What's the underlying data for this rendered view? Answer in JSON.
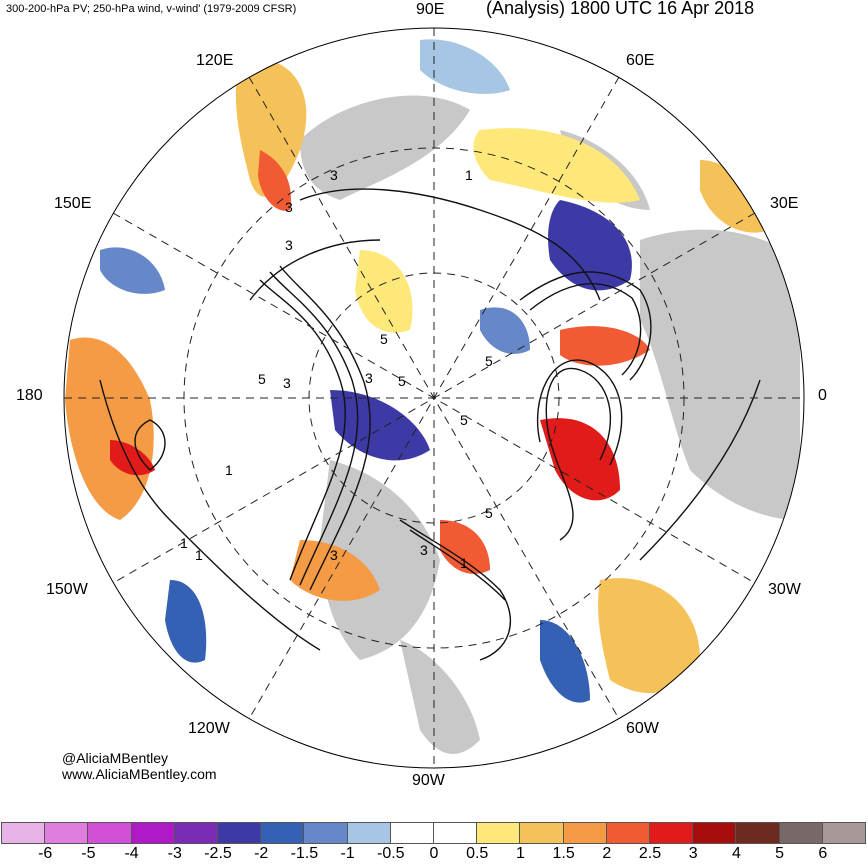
{
  "header": {
    "left": "300-200-hPa PV; 250-hPa wind, v-wind' (1979-2009 CFSR)",
    "right": "(Analysis) 1800 UTC 16 Apr 2018"
  },
  "longitude_labels": {
    "lon_90e": "90E",
    "lon_60e": "60E",
    "lon_120e": "120E",
    "lon_150e": "150E",
    "lon_30e": "30E",
    "lon_180": "180",
    "lon_0": "0",
    "lon_150w": "150W",
    "lon_30w": "30W",
    "lon_120w": "120W",
    "lon_60w": "60W",
    "lon_90w": "90W"
  },
  "credits": {
    "handle": "@AliciaMBentley",
    "site": "www.AliciaMBentley.com"
  },
  "contour_labels": [
    "3",
    "3",
    "3",
    "3",
    "1",
    "5",
    "5",
    "5",
    "3",
    "5",
    "5",
    "1",
    "3",
    "1",
    "5",
    "3",
    "1",
    "1"
  ],
  "colorbar": {
    "colors": [
      "#e8b4e8",
      "#e07ee0",
      "#d050d8",
      "#b019c8",
      "#7a2bb8",
      "#3d3aa6",
      "#3561b5",
      "#6688c8",
      "#a6c6e4",
      "#ffffff",
      "#ffffff",
      "#ffe87a",
      "#f5c25a",
      "#f59b45",
      "#f25a34",
      "#e11a1a",
      "#a80d0d",
      "#6e2a1e",
      "#786868",
      "#a89898"
    ],
    "ticks": [
      "-6",
      "-5",
      "-4",
      "-3",
      "-2.5",
      "-2",
      "-1.5",
      "-1",
      "-0.5",
      "0",
      "0.5",
      "1",
      "1.5",
      "2",
      "2.5",
      "3",
      "4",
      "5",
      "6"
    ]
  }
}
